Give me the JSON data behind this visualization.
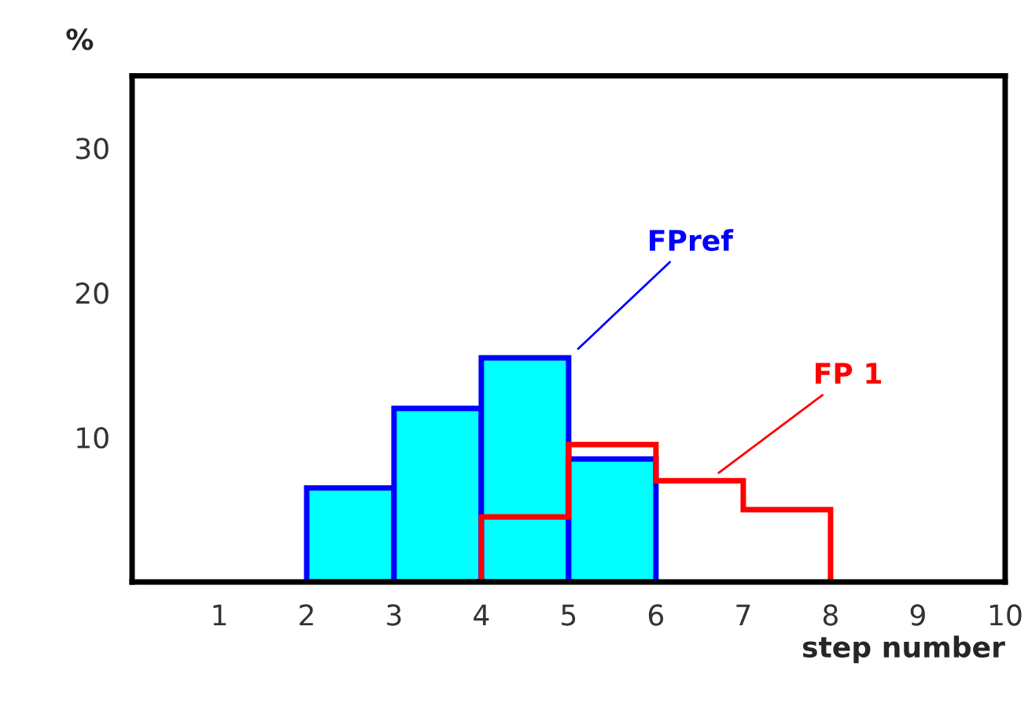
{
  "chart_data": {
    "type": "histogram",
    "xlabel": "step number",
    "ylabel": "%",
    "bins": [
      2,
      3,
      4,
      5,
      6,
      7,
      8
    ],
    "series": [
      {
        "name": "FPref",
        "color": "#0000ff",
        "colors": [
          "#00ffff",
          "#00ffff",
          "#00ffff",
          "#00ffff",
          null,
          null
        ],
        "values": [
          6.5,
          12,
          15.5,
          8.5,
          0,
          0
        ]
      },
      {
        "name": "FP 1",
        "color": "#ff0000",
        "values": [
          0,
          0,
          4.5,
          9.5,
          7,
          5
        ]
      }
    ],
    "xlim": [
      0,
      10
    ],
    "xticks": [
      1,
      2,
      3,
      4,
      5,
      6,
      7,
      8,
      9,
      {
        "value": 10,
        "label": "10"
      }
    ],
    "ylim": [
      0,
      35
    ],
    "yticks": [
      10,
      20,
      30
    ],
    "grid": false,
    "legend": false
  }
}
